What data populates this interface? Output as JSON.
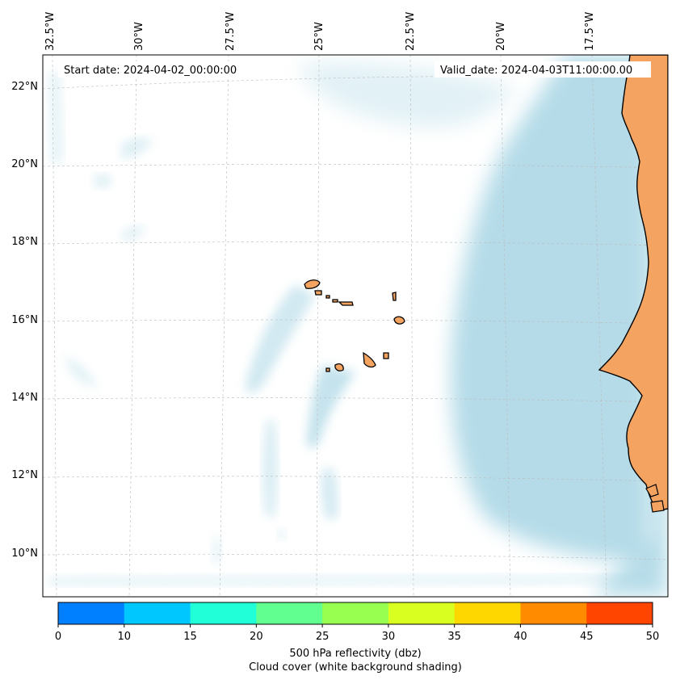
{
  "map": {
    "start_date": "Start date: 2024-04-02_00:00:00",
    "valid_date": "Valid_date: 2024-04-03T11:00:00.00",
    "lon_labels": [
      "32.5°W",
      "30°W",
      "27.5°W",
      "25°W",
      "22.5°W",
      "20°W",
      "17.5°W"
    ],
    "lat_labels": [
      "22°N",
      "20°N",
      "18°N",
      "16°N",
      "14°N",
      "12°N",
      "10°N"
    ],
    "colors": {
      "land": "#f4a460",
      "cloud": "#add8e6",
      "gridline": "#bbbbbb"
    }
  },
  "colorbar": {
    "ticks": [
      "0",
      "10",
      "15",
      "20",
      "25",
      "30",
      "35",
      "40",
      "45",
      "50"
    ],
    "colors": [
      "#0080ff",
      "#00c8ff",
      "#20ffd8",
      "#60ff90",
      "#98ff50",
      "#d8ff20",
      "#ffd700",
      "#ff8c00",
      "#ff4500"
    ],
    "label_line1": "500 hPa reflectivity (dbz)",
    "label_line2": "Cloud cover (white background shading)"
  }
}
